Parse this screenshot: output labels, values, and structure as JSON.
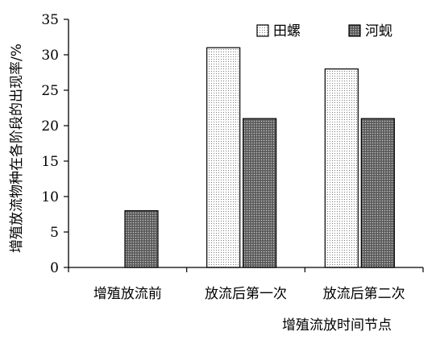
{
  "chart_data": {
    "type": "bar",
    "categories": [
      "增殖放流前",
      "放流后第一次",
      "放流后第二次"
    ],
    "series": [
      {
        "name": "田螺",
        "values": [
          0,
          31,
          28
        ],
        "pattern": "dots-light"
      },
      {
        "name": "河蚬",
        "values": [
          8,
          21,
          21
        ],
        "pattern": "dots-dark"
      }
    ],
    "xlabel": "增殖流放时间节点",
    "ylabel": "增殖放流物种在各阶段的出现率/%",
    "ylim": [
      0,
      35
    ],
    "yticks": [
      0,
      5,
      10,
      15,
      20,
      25,
      30,
      35
    ],
    "grid": false,
    "legend": "top-right"
  }
}
